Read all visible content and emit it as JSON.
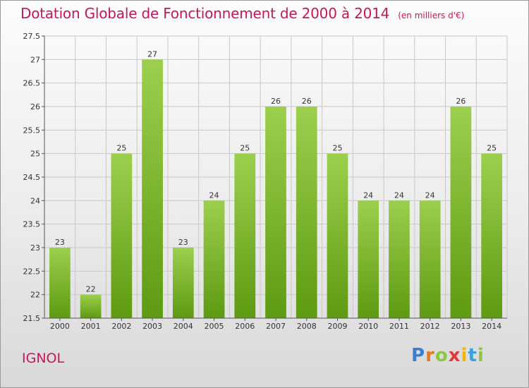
{
  "title": "Dotation Globale de Fonctionnement de 2000 à 2014",
  "subtitle": "(en milliers d'€)",
  "commune": "IGNOL",
  "brand": {
    "letters": [
      "P",
      "r",
      "o",
      "x",
      "i",
      "t",
      "i"
    ],
    "colors": [
      "#3a7fd0",
      "#e87a1e",
      "#8dc63f",
      "#e53935",
      "#f2b600",
      "#3aa0d8",
      "#8dc63f"
    ]
  },
  "colors": {
    "bar_top": "#9ccf4e",
    "bar_bottom": "#5e9a12",
    "grid": "#c8c8c8",
    "axis": "#555555",
    "text": "#333333",
    "accent": "#c2185b"
  },
  "chart_data": {
    "type": "bar",
    "categories": [
      "2000",
      "2001",
      "2002",
      "2003",
      "2004",
      "2005",
      "2006",
      "2007",
      "2008",
      "2009",
      "2010",
      "2011",
      "2012",
      "2013",
      "2014"
    ],
    "values": [
      23,
      22,
      25,
      27,
      23,
      24,
      25,
      26,
      26,
      25,
      24,
      24,
      24,
      26,
      25
    ],
    "data_labels": [
      "23",
      "22",
      "25",
      "27",
      "23",
      "24",
      "25",
      "26",
      "26",
      "25",
      "24",
      "24",
      "24",
      "26",
      "25"
    ],
    "ylim": [
      21.5,
      27.5
    ],
    "yticks": [
      21.5,
      22,
      22.5,
      23,
      23.5,
      24,
      24.5,
      25,
      25.5,
      26,
      26.5,
      27,
      27.5
    ],
    "ytick_labels": [
      "21.5",
      "22",
      "22.5",
      "23",
      "23.5",
      "24",
      "24.5",
      "25",
      "25.5",
      "26",
      "26.5",
      "27",
      "27.5"
    ],
    "grid": true
  }
}
